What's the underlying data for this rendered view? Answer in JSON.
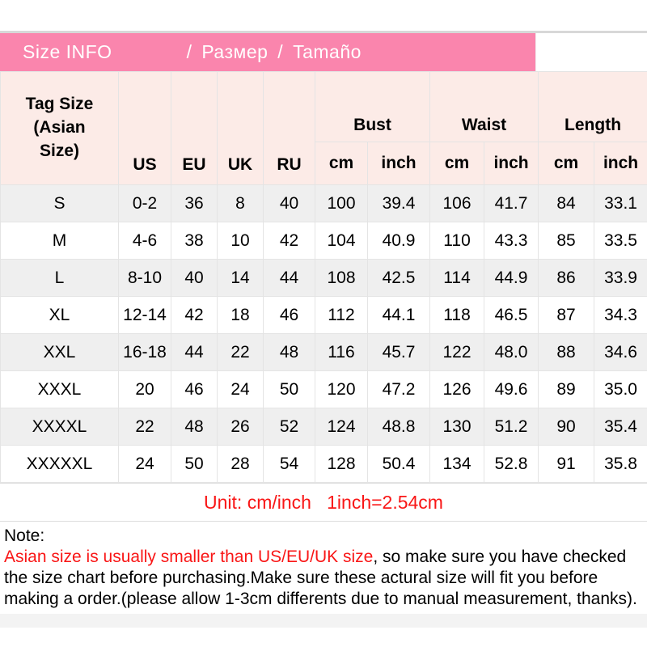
{
  "colors": {
    "pink": "#fa85ad",
    "header_pink": "#fcebe7",
    "row_alt": "#efefef",
    "border": "#e4e4e4",
    "top_line": "#d8d8d8",
    "red": "#f91616",
    "footer_strip": "#f3f3f3",
    "text": "#000000"
  },
  "header": {
    "title_left": "Size INFO",
    "title_right": "/ Размер / Tamaño"
  },
  "table": {
    "headers": {
      "tag_size": "Tag Size\n(Asian\nSize)",
      "us": "US",
      "eu": "EU",
      "uk": "UK",
      "ru": "RU",
      "bust": "Bust",
      "waist": "Waist",
      "length": "Length",
      "cm": "cm",
      "inch": "inch"
    }
  },
  "chart_data": {
    "type": "table",
    "title": "Size INFO / Размер / Tamaño",
    "columns": [
      "Tag Size (Asian Size)",
      "US",
      "EU",
      "UK",
      "RU",
      "Bust cm",
      "Bust inch",
      "Waist cm",
      "Waist inch",
      "Length cm",
      "Length inch"
    ],
    "rows": [
      [
        "S",
        "0-2",
        "36",
        "8",
        "40",
        "100",
        "39.4",
        "106",
        "41.7",
        "84",
        "33.1"
      ],
      [
        "M",
        "4-6",
        "38",
        "10",
        "42",
        "104",
        "40.9",
        "110",
        "43.3",
        "85",
        "33.5"
      ],
      [
        "L",
        "8-10",
        "40",
        "14",
        "44",
        "108",
        "42.5",
        "114",
        "44.9",
        "86",
        "33.9"
      ],
      [
        "XL",
        "12-14",
        "42",
        "18",
        "46",
        "112",
        "44.1",
        "118",
        "46.5",
        "87",
        "34.3"
      ],
      [
        "XXL",
        "16-18",
        "44",
        "22",
        "48",
        "116",
        "45.7",
        "122",
        "48.0",
        "88",
        "34.6"
      ],
      [
        "XXXL",
        "20",
        "46",
        "24",
        "50",
        "120",
        "47.2",
        "126",
        "49.6",
        "89",
        "35.0"
      ],
      [
        "XXXXL",
        "22",
        "48",
        "26",
        "52",
        "124",
        "48.8",
        "130",
        "51.2",
        "90",
        "35.4"
      ],
      [
        "XXXXXL",
        "24",
        "50",
        "28",
        "54",
        "128",
        "50.4",
        "134",
        "52.8",
        "91",
        "35.8"
      ]
    ],
    "unit": "Unit: cm/inch 1inch=2.54cm"
  },
  "unit_note": "Unit: cm/inch   1inch=2.54cm",
  "note": {
    "label": "Note:",
    "red_part": "Asian size is usually smaller than US/EU/UK size",
    "black_part": ", so make sure you have checked the size chart before purchasing.Make sure these actural size will fit you before making a order.(please allow 1-3cm differents due to manual measurement, thanks)."
  }
}
